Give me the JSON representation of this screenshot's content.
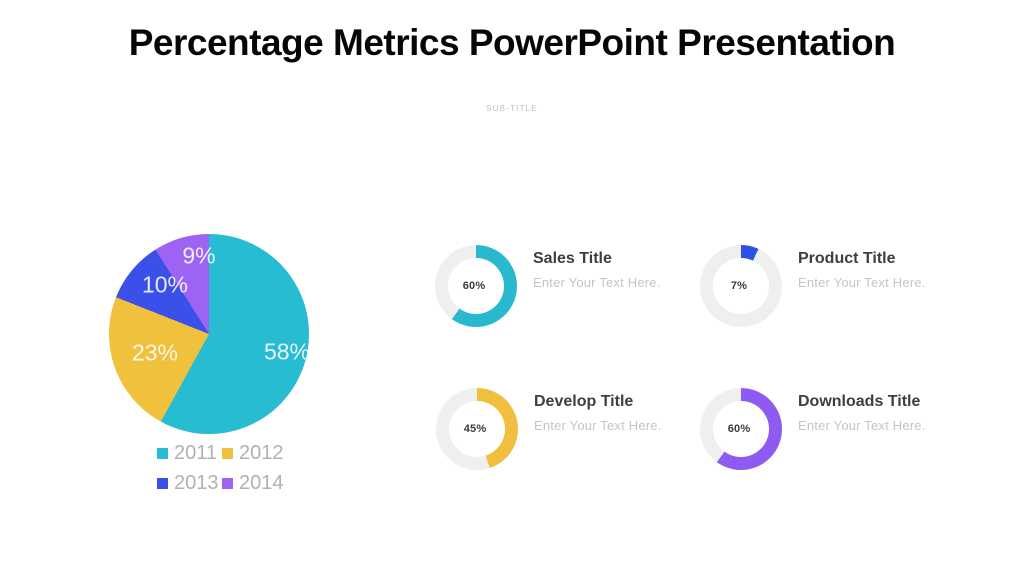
{
  "slide": {
    "title": "Percentage Metrics PowerPoint Presentation",
    "subtitle": "SUB-TITLE"
  },
  "colors": {
    "teal": "#28BCD2",
    "yellow": "#F0C13C",
    "blue": "#3A50E9",
    "purple": "#9D64F3",
    "track": "#EFEFEF"
  },
  "chart_data": [
    {
      "type": "pie",
      "categories": [
        "2011",
        "2012",
        "2013",
        "2014"
      ],
      "values": [
        58,
        23,
        10,
        9
      ],
      "slice_labels": [
        "58%",
        "23%",
        "10%",
        "9%"
      ],
      "slice_colors": [
        "#28BCD2",
        "#F0C13C",
        "#3A50E9",
        "#9D64F3"
      ],
      "start_angle": "top",
      "direction": "clockwise",
      "legend_position": "bottom"
    },
    {
      "type": "donut",
      "title": "Sales Title",
      "value": 60,
      "label": "60%",
      "color": "#29B9CE"
    },
    {
      "type": "donut",
      "title": "Product Title",
      "value": 7,
      "label": "7%",
      "color": "#2C51E3"
    },
    {
      "type": "donut",
      "title": "Develop Title",
      "value": 45,
      "label": "45%",
      "color": "#F0BF3F"
    },
    {
      "type": "donut",
      "title": "Downloads Title",
      "value": 60,
      "label": "60%",
      "color": "#8D5BF2"
    }
  ],
  "legend": {
    "items": [
      {
        "label": "2011",
        "color": "#28BCD2"
      },
      {
        "label": "2012",
        "color": "#F0C13C"
      },
      {
        "label": "2013",
        "color": "#3A50E9"
      },
      {
        "label": "2014",
        "color": "#9D64F3"
      }
    ]
  },
  "metrics": [
    {
      "title": "Sales Title",
      "text": "Enter Your Text Here.",
      "percent": 60,
      "label": "60%",
      "color": "#29B9CE"
    },
    {
      "title": "Product Title",
      "text": "Enter Your Text Here.",
      "percent": 7,
      "label": "7%",
      "color": "#2C51E3"
    },
    {
      "title": "Develop Title",
      "text": "Enter Your Text Here.",
      "percent": 45,
      "label": "45%",
      "color": "#F0BF3F"
    },
    {
      "title": "Downloads Title",
      "text": "Enter Your Text Here.",
      "percent": 60,
      "label": "60%",
      "color": "#8D5BF2"
    }
  ]
}
